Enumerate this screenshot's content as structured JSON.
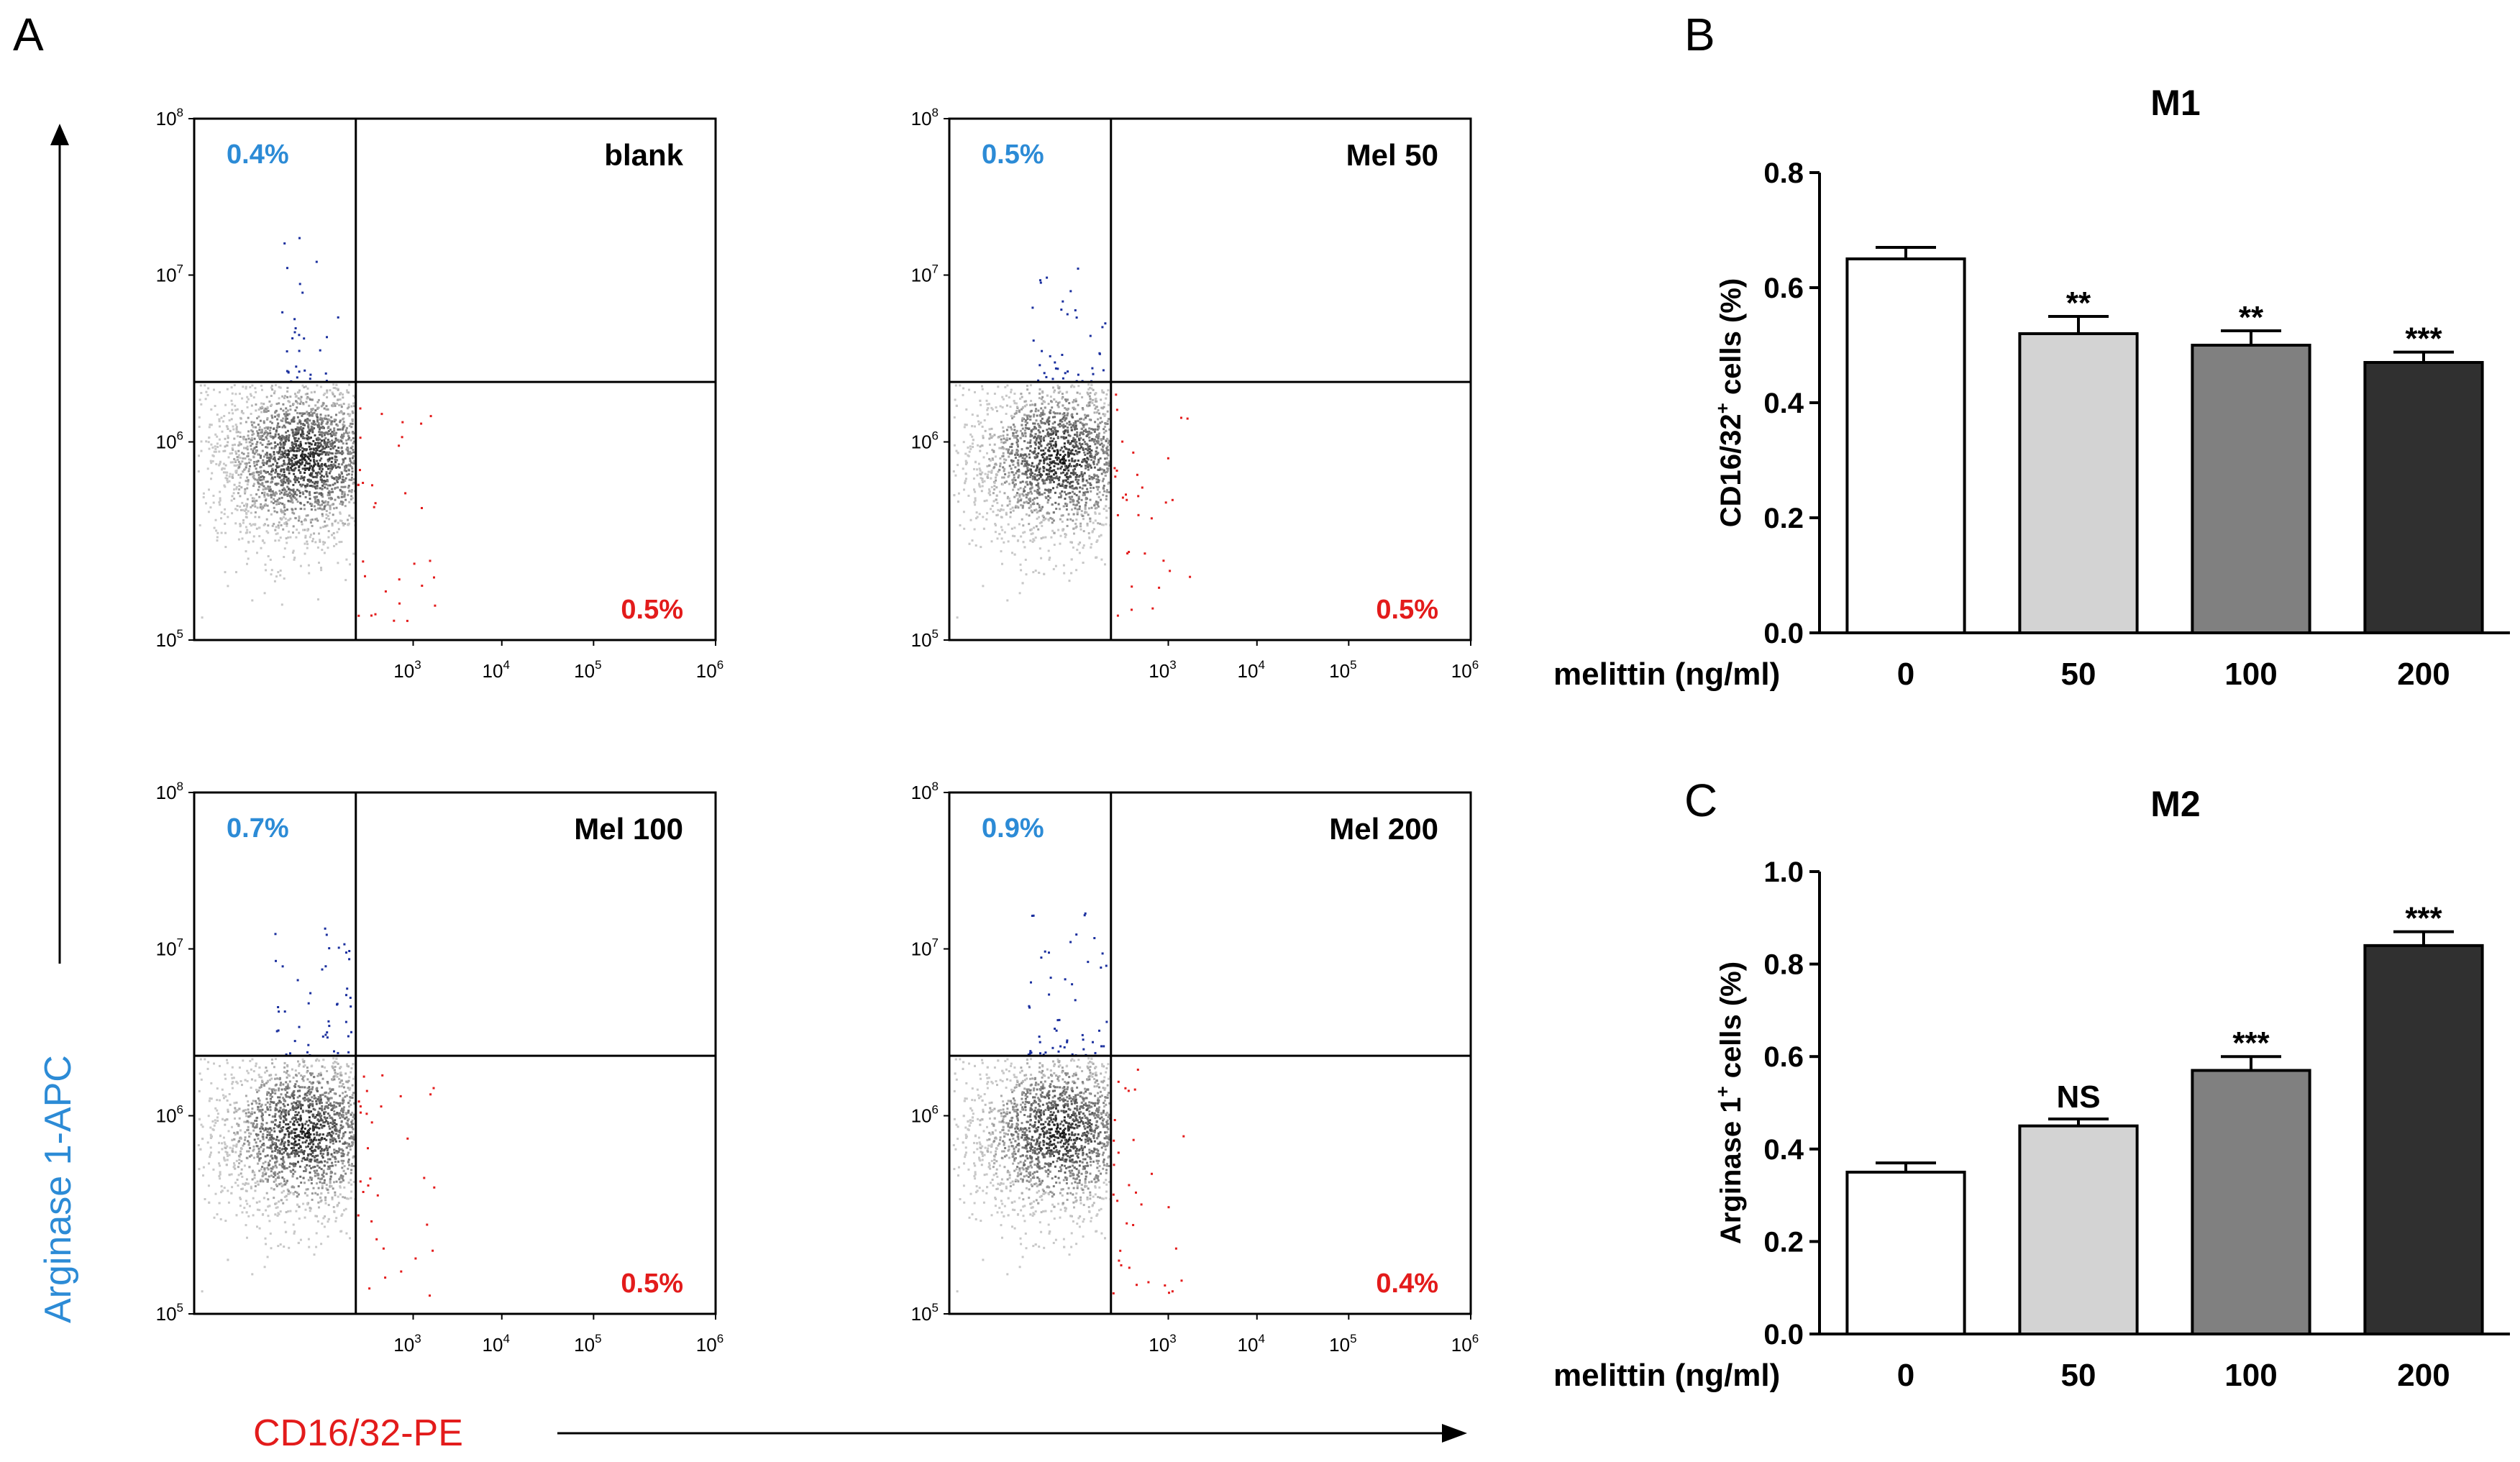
{
  "panel_letters": {
    "a": "A",
    "b": "B",
    "c": "C"
  },
  "flow": {
    "y_axis_title": "Arginase 1-APC",
    "x_axis_title": "CD16/32-PE",
    "y_ticks": [
      {
        "base": "10",
        "exp": "8"
      },
      {
        "base": "10",
        "exp": "7"
      },
      {
        "base": "10",
        "exp": "6"
      },
      {
        "base": "10",
        "exp": "5"
      }
    ],
    "x_ticks": [
      {
        "base": "10",
        "exp": "3"
      },
      {
        "base": "10",
        "exp": "4"
      },
      {
        "base": "10",
        "exp": "5"
      },
      {
        "base": "10",
        "exp": "6"
      }
    ],
    "panels": [
      {
        "label": "blank",
        "upper_left_pct": "0.4%",
        "lower_right_pct": "0.5%"
      },
      {
        "label": "Mel 50",
        "upper_left_pct": "0.5%",
        "lower_right_pct": "0.5%"
      },
      {
        "label": "Mel 100",
        "upper_left_pct": "0.7%",
        "lower_right_pct": "0.5%"
      },
      {
        "label": "Mel 200",
        "upper_left_pct": "0.9%",
        "lower_right_pct": "0.4%"
      }
    ]
  },
  "colors": {
    "blue_text": "#2c8bd6",
    "red_text": "#e31b1b",
    "blue_dots": "#1a2f9e",
    "red_dots": "#e31b1b",
    "bar_fills": [
      "#ffffff",
      "#d3d3d3",
      "#808080",
      "#303030"
    ]
  },
  "chart_data": [
    {
      "type": "bar",
      "panel": "B",
      "title": "M1",
      "ylabel_main": "CD16/32",
      "ylabel_sup": "+",
      "ylabel_rest": " cells (%)",
      "xlabel": "melittin (ng/ml)",
      "categories": [
        "0",
        "50",
        "100",
        "200"
      ],
      "values": [
        0.65,
        0.52,
        0.5,
        0.47
      ],
      "errors": [
        0.02,
        0.03,
        0.025,
        0.018
      ],
      "significance": [
        "",
        "**",
        "**",
        "***"
      ],
      "ylim": [
        0,
        0.8
      ],
      "yticks": [
        "0.0",
        "0.2",
        "0.4",
        "0.6",
        "0.8"
      ]
    },
    {
      "type": "bar",
      "panel": "C",
      "title": "M2",
      "ylabel_main": "Arginase 1",
      "ylabel_sup": "+",
      "ylabel_rest": " cells (%)",
      "xlabel": "melittin (ng/ml)",
      "categories": [
        "0",
        "50",
        "100",
        "200"
      ],
      "values": [
        0.35,
        0.45,
        0.57,
        0.84
      ],
      "errors": [
        0.02,
        0.015,
        0.03,
        0.03
      ],
      "significance": [
        "",
        "NS",
        "***",
        "***"
      ],
      "ylim": [
        0,
        1.0
      ],
      "yticks": [
        "0.0",
        "0.2",
        "0.4",
        "0.6",
        "0.8",
        "1.0"
      ]
    }
  ]
}
